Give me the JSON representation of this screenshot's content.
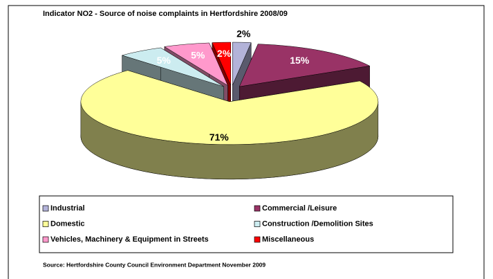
{
  "chart_data": {
    "type": "pie3d",
    "title": "Indicator NO2 - Source of noise complaints in Hertfordshire 2008/09",
    "categories": [
      "Industrial",
      "Commercial /Leisure",
      "Domestic",
      "Construction /Demolition Sites",
      "Vehicles, Machinery & Equipment in Streets",
      "Miscellaneous"
    ],
    "values": [
      2,
      15,
      71,
      5,
      5,
      2
    ],
    "value_labels": [
      "2%",
      "15%",
      "71%",
      "5%",
      "5%",
      "2%"
    ],
    "colors": [
      "#b3b3d9",
      "#993366",
      "#ffff99",
      "#ccecf0",
      "#ff99cc",
      "#ff0000"
    ],
    "source": "Source: Hertfordshire County Council Environment Department November 2009"
  }
}
